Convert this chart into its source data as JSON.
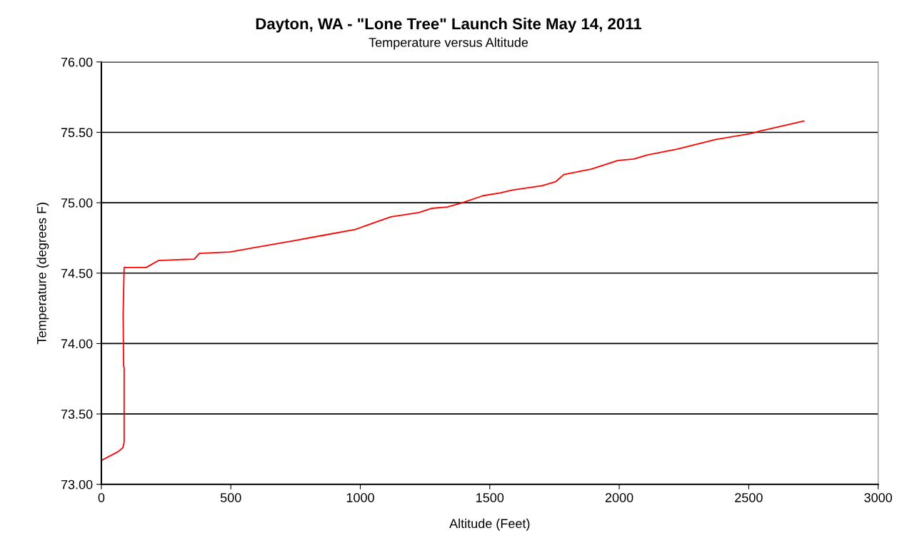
{
  "chart_data": {
    "type": "line",
    "title": "Dayton, WA - \"Lone Tree\" Launch Site May 14, 2011",
    "subtitle": "Temperature versus Altitude",
    "xlabel": "Altitude (Feet)",
    "ylabel": "Temperature (degrees F)",
    "series": [
      {
        "color": "#ff0000",
        "x": [
          0,
          63,
          83,
          88,
          88,
          86,
          84,
          88,
          173,
          221,
          359,
          378,
          497,
          585,
          743,
          861,
          980,
          1118,
          1226,
          1275,
          1336,
          1394,
          1474,
          1540,
          1587,
          1700,
          1755,
          1786,
          1893,
          1995,
          2056,
          2109,
          2222,
          2374,
          2506,
          2547,
          2641,
          2713
        ],
        "values": [
          73.17,
          73.23,
          73.26,
          73.3,
          73.83,
          73.84,
          74.2,
          74.54,
          74.54,
          74.59,
          74.6,
          74.64,
          74.65,
          74.68,
          74.73,
          74.77,
          74.81,
          74.9,
          74.93,
          74.96,
          74.97,
          75.0,
          75.05,
          75.07,
          75.09,
          75.12,
          75.15,
          75.2,
          75.24,
          75.3,
          75.31,
          75.34,
          75.38,
          75.45,
          75.49,
          75.51,
          75.55,
          75.58
        ]
      }
    ],
    "xlim": [
      0,
      3000
    ],
    "xticks": [
      0,
      500,
      1000,
      1500,
      2000,
      2500,
      3000
    ],
    "ylim": [
      73.0,
      76.0
    ],
    "yticks": [
      {
        "value": 73.0,
        "label": "73.00"
      },
      {
        "value": 73.5,
        "label": "73.50"
      },
      {
        "value": 74.0,
        "label": "74.00"
      },
      {
        "value": 74.5,
        "label": "74.50"
      },
      {
        "value": 75.0,
        "label": "75.00"
      },
      {
        "value": 75.5,
        "label": "75.50"
      },
      {
        "value": 76.0,
        "label": "76.00"
      }
    ],
    "grid": "y",
    "marker": "none",
    "line_style": "solid"
  }
}
